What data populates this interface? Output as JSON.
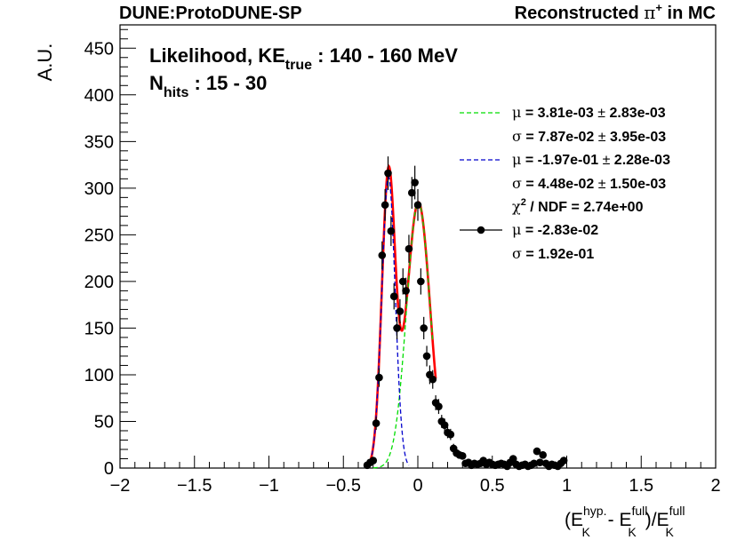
{
  "header": {
    "left": "DUNE:ProtoDUNE-SP",
    "right_prefix": "Reconstructed ",
    "right_symbol": "π",
    "right_sup": "+",
    "right_suffix": " in MC"
  },
  "annotation": {
    "line1_prefix": "Likelihood, KE",
    "line1_sub": "true",
    "line1_suffix": " : 140 - 160 MeV",
    "line2_prefix": "N",
    "line2_sub": "hits",
    "line2_suffix": " : 15 - 30"
  },
  "axes": {
    "ylabel": "A.U.",
    "xlabel": {
      "open": "(E",
      "sup1": "hyp.",
      "sub1": "K",
      "mid": " - E",
      "sup2": "full",
      "sub2": "K",
      "close": ")/E",
      "sup3": "full",
      "sub3": "K"
    }
  },
  "legend": [
    {
      "symbol": "μ",
      "text": " = 3.81e-03 ",
      "pm": "±",
      "err": " 2.83e-03",
      "marker": "green-dash"
    },
    {
      "symbol": "σ",
      "text": " = 7.87e-02 ",
      "pm": "±",
      "err": " 3.95e-03",
      "marker": "none"
    },
    {
      "symbol": "μ",
      "text": " = -1.97e-01 ",
      "pm": "±",
      "err": " 2.28e-03",
      "marker": "blue-dash"
    },
    {
      "symbol": "σ",
      "text": " = 4.48e-02 ",
      "pm": "±",
      "err": " 1.50e-03",
      "marker": "none"
    },
    {
      "symbol": "χ",
      "sup": "2",
      "text": " / NDF = 2.74e+00",
      "marker": "none"
    },
    {
      "symbol": "μ",
      "text": " = -2.83e-02",
      "marker": "data"
    },
    {
      "symbol": "σ",
      "text": " = 1.92e-01",
      "marker": "none"
    }
  ],
  "colors": {
    "data": "#000000",
    "total_fit": "#ff0000",
    "gauss1": "#00dd00",
    "gauss2": "#0000cc"
  },
  "chart_data": {
    "type": "scatter",
    "xlim": [
      -2,
      2
    ],
    "ylim": [
      0,
      475
    ],
    "xticks": [
      -2,
      -1.5,
      -1,
      -0.5,
      0,
      0.5,
      1,
      1.5,
      2
    ],
    "xtick_labels": [
      "−2",
      "−1.5",
      "−1",
      "−0.5",
      "0",
      "0.5",
      "1",
      "1.5",
      "2"
    ],
    "yticks": [
      0,
      50,
      100,
      150,
      200,
      250,
      300,
      350,
      400,
      450
    ],
    "ytick_labels": [
      "0",
      "50",
      "100",
      "150",
      "200",
      "250",
      "300",
      "350",
      "400",
      "450"
    ],
    "series": [
      {
        "name": "data",
        "x": [
          -0.34,
          -0.32,
          -0.3,
          -0.28,
          -0.26,
          -0.24,
          -0.22,
          -0.2,
          -0.18,
          -0.16,
          -0.14,
          -0.12,
          -0.1,
          -0.08,
          -0.06,
          -0.04,
          -0.02,
          0.0,
          0.02,
          0.04,
          0.06,
          0.08,
          0.1,
          0.12,
          0.14,
          0.16,
          0.18,
          0.2,
          0.22,
          0.24,
          0.26,
          0.28,
          0.3,
          0.32,
          0.34,
          0.36,
          0.38,
          0.4,
          0.42,
          0.44,
          0.46,
          0.48,
          0.5,
          0.52,
          0.54,
          0.56,
          0.58,
          0.6,
          0.62,
          0.64,
          0.66,
          0.68,
          0.7,
          0.72,
          0.74,
          0.76,
          0.78,
          0.8,
          0.82,
          0.84,
          0.86,
          0.88,
          0.9,
          0.92,
          0.94,
          0.96,
          0.98
        ],
        "y": [
          3,
          6,
          8,
          48,
          97,
          228,
          282,
          316,
          254,
          184,
          150,
          168,
          200,
          190,
          235,
          295,
          306,
          282,
          200,
          150,
          120,
          100,
          95,
          70,
          66,
          50,
          46,
          38,
          36,
          21,
          16,
          14,
          13,
          5,
          6,
          3,
          5,
          4,
          5,
          8,
          4,
          6,
          4,
          3,
          4,
          5,
          4,
          2,
          6,
          10,
          4,
          2,
          3,
          4,
          2,
          3,
          5,
          18,
          6,
          14,
          5,
          2,
          4,
          3,
          2,
          5,
          8
        ],
        "err": [
          2,
          3,
          3,
          7,
          10,
          15,
          17,
          18,
          16,
          14,
          12,
          13,
          14,
          14,
          15,
          17,
          18,
          17,
          14,
          12,
          11,
          10,
          10,
          8,
          8,
          7,
          7,
          6,
          6,
          5,
          4,
          4,
          4,
          2,
          3,
          2,
          2,
          2,
          2,
          3,
          2,
          3,
          2,
          2,
          2,
          2,
          2,
          2,
          3,
          3,
          2,
          2,
          2,
          2,
          2,
          2,
          2,
          4,
          3,
          4,
          2,
          2,
          2,
          2,
          2,
          2,
          3
        ]
      },
      {
        "name": "gauss1",
        "mu": 0.00381,
        "sigma": 0.0787,
        "amp": 285,
        "x_range": [
          -0.3,
          0.1
        ]
      },
      {
        "name": "gauss2",
        "mu": -0.197,
        "sigma": 0.0448,
        "amp": 312,
        "x_range": [
          -0.35,
          -0.06
        ]
      },
      {
        "name": "total_fit",
        "x_range": [
          -0.35,
          0.12
        ]
      }
    ]
  }
}
